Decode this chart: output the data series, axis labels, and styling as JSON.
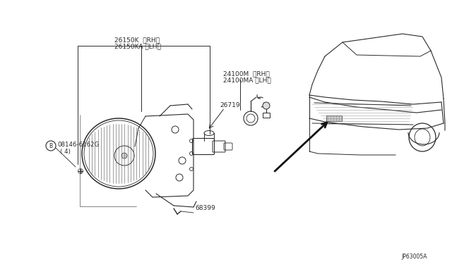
{
  "bg_color": "#ffffff",
  "line_color": "#2a2a2a",
  "text_color": "#2a2a2a",
  "fig_width": 6.4,
  "fig_height": 3.72,
  "dpi": 100,
  "font_size": 6.0,
  "small_font_size": 5.5,
  "labels": {
    "part1_line1": "26150K  (RH)",
    "part1_line2": "26150KA (LH)",
    "part2_line1": "24100M  (RH)",
    "part2_line2": "24100MA (LH)",
    "part3": "26719",
    "part4_line1": "08146-6162G",
    "part4_line2": "( 4)",
    "part5": "68399",
    "diagram_code": "JP63005A"
  }
}
